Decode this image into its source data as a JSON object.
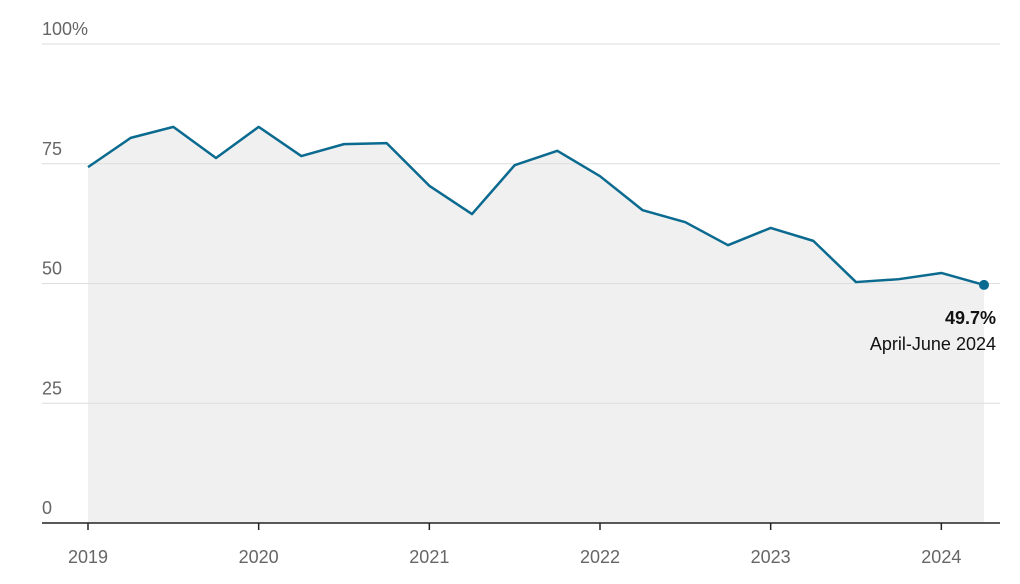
{
  "chart_data": {
    "type": "line",
    "x": [
      2019,
      2019.25,
      2019.5,
      2019.75,
      2020,
      2020.25,
      2020.5,
      2020.75,
      2021,
      2021.25,
      2021.5,
      2021.75,
      2022,
      2022.25,
      2022.5,
      2022.75,
      2023,
      2023.25,
      2023.5,
      2023.75,
      2024,
      2024.25
    ],
    "values": [
      74.3,
      80.4,
      82.7,
      76.2,
      82.7,
      76.6,
      79.1,
      79.3,
      70.4,
      64.5,
      74.7,
      77.7,
      72.4,
      65.3,
      62.8,
      58.0,
      61.6,
      58.9,
      50.3,
      50.9,
      52.2,
      49.7
    ],
    "value_labels": [
      null,
      null,
      null,
      null,
      null,
      null,
      null,
      null,
      null,
      null,
      null,
      null,
      null,
      null,
      null,
      null,
      null,
      null,
      null,
      null,
      null,
      "49.7%"
    ],
    "annotation": "April-June 2024",
    "color": "#0b6a8f",
    "area_color": "#f0f0f0",
    "xlim": [
      2019,
      2024.25
    ],
    "xticks": [
      2019,
      2020,
      2021,
      2022,
      2023,
      2024
    ],
    "ylim": [
      0,
      100
    ],
    "yticks": [
      0,
      25,
      50,
      75,
      {
        "value": 100,
        "label": "100%"
      }
    ],
    "grid": true
  }
}
